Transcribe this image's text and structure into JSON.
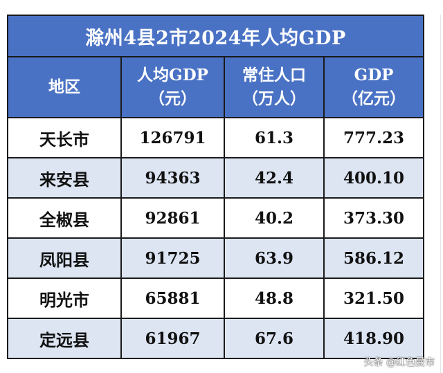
{
  "title": "滁州4县2市2024年人均GDP",
  "headers": [
    {
      "line1": "地区",
      "line2": ""
    },
    {
      "line1": "人均GDP",
      "line2": "（元）"
    },
    {
      "line1": "常住人口",
      "line2": "（万人）"
    },
    {
      "line1": "GDP",
      "line2": "（亿元）"
    }
  ],
  "rows": [
    {
      "region": "天长市",
      "per_capita_gdp": "126791",
      "population": "61.3",
      "gdp": "777.23"
    },
    {
      "region": "来安县",
      "per_capita_gdp": "94363",
      "population": "42.4",
      "gdp": "400.10"
    },
    {
      "region": "全椒县",
      "per_capita_gdp": "92861",
      "population": "40.2",
      "gdp": "373.30"
    },
    {
      "region": "凤阳县",
      "per_capita_gdp": "91725",
      "population": "63.9",
      "gdp": "586.12"
    },
    {
      "region": "明光市",
      "per_capita_gdp": "65881",
      "population": "48.8",
      "gdp": "321.50"
    },
    {
      "region": "定远县",
      "per_capita_gdp": "61967",
      "population": "67.6",
      "gdp": "418.90"
    }
  ],
  "watermark": "头条 @红色曼市",
  "colors": {
    "header_bg": "#4a72c4",
    "alt_row_bg": "#dde5f3",
    "border": "#1a1a1a"
  }
}
